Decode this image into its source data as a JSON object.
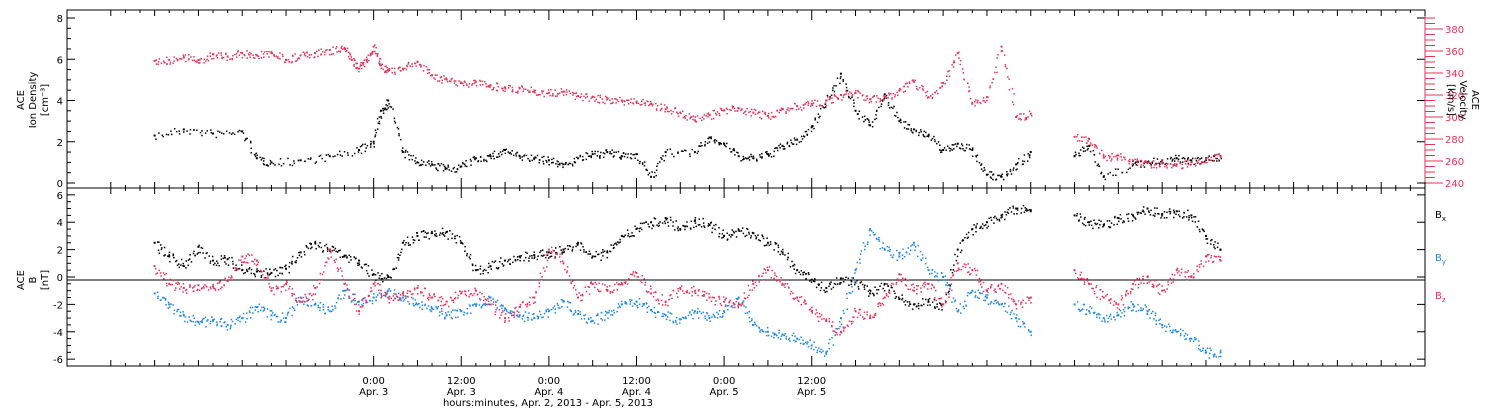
{
  "chart_data": [
    {
      "type": "scatter",
      "panel": "ion density and velocity",
      "ylabel_left": [
        "ACE",
        "Ion Density",
        "[cm⁻³]"
      ],
      "ylabel_right": [
        "ACE",
        "Velocity",
        "[km/s]"
      ],
      "ylim_left": [
        0,
        8
      ],
      "yticks_left": [
        "0",
        "2",
        "4",
        "6",
        "8"
      ],
      "ylim_right": [
        240,
        390
      ],
      "yticks_right": [
        "240",
        "260",
        "280",
        "300",
        "320",
        "340",
        "360",
        "380"
      ],
      "series": [
        {
          "axis": "left",
          "color": "#000000",
          "x": [
            -30,
            -26,
            -22,
            -18,
            -16,
            -14,
            -10,
            -6,
            -2,
            0,
            1,
            2,
            4,
            6,
            8,
            10,
            12,
            14,
            16,
            18,
            20,
            22,
            24,
            26,
            28,
            30,
            32,
            34,
            36,
            38,
            40,
            44,
            46,
            48,
            50,
            52,
            54,
            56,
            58,
            60,
            62,
            64,
            66,
            68,
            70,
            72,
            74,
            76,
            78,
            80,
            82,
            84,
            86,
            88,
            90,
            96,
            98,
            100,
            104,
            106,
            108,
            110,
            112,
            114,
            116
          ],
          "y": [
            2.3,
            2.6,
            2.4,
            2.5,
            1.2,
            1.0,
            1.1,
            1.3,
            1.6,
            2.0,
            3.5,
            4.0,
            1.5,
            1.0,
            0.9,
            0.7,
            0.8,
            1.2,
            1.3,
            1.6,
            1.3,
            1.2,
            1.1,
            0.9,
            1.2,
            1.4,
            1.5,
            1.3,
            1.4,
            0.3,
            1.5,
            1.5,
            2.2,
            1.9,
            1.3,
            1.2,
            1.4,
            1.8,
            2.1,
            2.7,
            4.0,
            5.3,
            3.5,
            2.8,
            4.3,
            3.0,
            2.6,
            2.3,
            1.6,
            1.9,
            1.6,
            0.4,
            0.3,
            0.9,
            1.5,
            1.3,
            1.8,
            0.3,
            0.9,
            1.0,
            1.1,
            1.2,
            1.1,
            1.2,
            1.3
          ]
        },
        {
          "axis": "right",
          "color": "#e8325a",
          "x": [
            -30,
            -28,
            -26,
            -24,
            -22,
            -20,
            -18,
            -16,
            -14,
            -12,
            -10,
            -8,
            -6,
            -4,
            -3,
            -2,
            -1,
            0,
            1,
            2,
            4,
            6,
            8,
            10,
            12,
            14,
            16,
            18,
            20,
            22,
            24,
            26,
            28,
            30,
            32,
            34,
            36,
            38,
            40,
            42,
            44,
            46,
            48,
            50,
            52,
            54,
            56,
            58,
            60,
            62,
            64,
            66,
            68,
            70,
            72,
            74,
            76,
            78,
            80,
            82,
            84,
            86,
            88,
            90,
            96,
            98,
            100,
            102,
            104,
            106,
            108,
            110,
            112,
            114,
            116
          ],
          "y": [
            351,
            352,
            354,
            352,
            357,
            355,
            358,
            356,
            359,
            352,
            356,
            358,
            361,
            362,
            352,
            344,
            352,
            364,
            347,
            342,
            344,
            350,
            338,
            334,
            331,
            332,
            329,
            327,
            326,
            324,
            322,
            323,
            319,
            318,
            316,
            315,
            314,
            312,
            307,
            304,
            297,
            302,
            306,
            308,
            304,
            301,
            307,
            310,
            312,
            315,
            320,
            322,
            316,
            318,
            324,
            332,
            318,
            331,
            358,
            312,
            318,
            364,
            300,
            303,
            282,
            280,
            263,
            265,
            260,
            258,
            258,
            257,
            259,
            262,
            264
          ]
        }
      ]
    },
    {
      "type": "scatter",
      "panel": "magnetic field",
      "ylabel": [
        "ACE",
        "B",
        "[nT]"
      ],
      "ylim": [
        -6.5,
        6.5
      ],
      "yticks": [
        "-6",
        "-4",
        "-2",
        "0",
        "2",
        "4",
        "6"
      ],
      "legend": [
        "Bx",
        "By",
        "Bz"
      ],
      "series": [
        {
          "name": "Bx",
          "color": "#000000",
          "x": [
            -30,
            -28,
            -26,
            -24,
            -22,
            -20,
            -18,
            -16,
            -14,
            -12,
            -10,
            -8,
            -6,
            -4,
            -2,
            0,
            2,
            4,
            6,
            8,
            10,
            12,
            14,
            16,
            18,
            20,
            22,
            24,
            26,
            28,
            30,
            32,
            34,
            36,
            38,
            40,
            42,
            44,
            46,
            48,
            50,
            52,
            54,
            56,
            58,
            60,
            62,
            64,
            66,
            68,
            70,
            72,
            74,
            76,
            78,
            80,
            82,
            84,
            86,
            88,
            90,
            96,
            98,
            100,
            102,
            104,
            106,
            108,
            110,
            112,
            114,
            116
          ],
          "y": [
            2.5,
            1.5,
            0.8,
            2.2,
            1.2,
            1.3,
            0.5,
            0.4,
            0.3,
            0.6,
            1.8,
            2.5,
            2.0,
            1.5,
            1.2,
            0.2,
            0.0,
            2.5,
            3.0,
            3.2,
            3.3,
            2.5,
            0.5,
            0.8,
            1.2,
            1.5,
            1.6,
            1.8,
            2.0,
            2.5,
            1.5,
            1.8,
            3.0,
            3.5,
            4.0,
            4.3,
            3.5,
            4.1,
            3.8,
            3.0,
            3.4,
            3.2,
            2.5,
            1.8,
            0.5,
            -0.2,
            -0.8,
            -0.1,
            -0.4,
            -1.2,
            -0.5,
            -1.6,
            -2.0,
            -1.8,
            -2.0,
            2.0,
            3.5,
            4.0,
            4.5,
            5.0,
            4.8,
            4.5,
            4.0,
            3.8,
            4.3,
            4.5,
            5.0,
            4.6,
            4.8,
            4.5,
            3.0,
            2.0
          ]
        },
        {
          "name": "By",
          "color": "#1e88e5",
          "x": [
            -30,
            -28,
            -26,
            -24,
            -22,
            -20,
            -18,
            -16,
            -14,
            -12,
            -10,
            -8,
            -6,
            -4,
            -2,
            0,
            2,
            4,
            6,
            8,
            10,
            12,
            14,
            16,
            18,
            20,
            22,
            24,
            26,
            28,
            30,
            32,
            34,
            36,
            38,
            40,
            42,
            44,
            46,
            48,
            50,
            52,
            54,
            56,
            58,
            60,
            62,
            64,
            66,
            68,
            70,
            72,
            74,
            76,
            78,
            80,
            82,
            84,
            86,
            88,
            90,
            96,
            98,
            100,
            102,
            104,
            106,
            108,
            110,
            112,
            114,
            116
          ],
          "y": [
            -1.2,
            -2.0,
            -2.8,
            -3.3,
            -3.2,
            -3.5,
            -3.0,
            -2.2,
            -2.8,
            -3.0,
            -1.5,
            -2.0,
            -2.5,
            -1.0,
            -1.8,
            -1.5,
            -1.0,
            -1.5,
            -2.0,
            -2.3,
            -2.8,
            -2.5,
            -2.0,
            -1.5,
            -2.3,
            -2.8,
            -3.0,
            -2.5,
            -1.8,
            -2.7,
            -3.2,
            -2.6,
            -2.0,
            -1.8,
            -2.4,
            -2.8,
            -3.1,
            -2.5,
            -3.0,
            -2.5,
            -1.5,
            -3.5,
            -4.0,
            -4.2,
            -4.5,
            -5.0,
            -5.5,
            -3.0,
            0.5,
            3.5,
            2.0,
            1.5,
            2.5,
            0.5,
            0.0,
            -2.5,
            -1.0,
            -1.5,
            -2.0,
            -3.0,
            -4.0,
            -2.0,
            -2.5,
            -3.0,
            -2.8,
            -2.0,
            -2.5,
            -3.5,
            -4.0,
            -4.5,
            -5.5,
            -5.5
          ]
        },
        {
          "name": "Bz",
          "color": "#e8325a",
          "x": [
            -30,
            -28,
            -26,
            -24,
            -22,
            -20,
            -18,
            -16,
            -14,
            -12,
            -10,
            -8,
            -6,
            -4,
            -2,
            0,
            2,
            4,
            6,
            8,
            10,
            12,
            14,
            16,
            18,
            20,
            22,
            24,
            26,
            28,
            30,
            32,
            34,
            36,
            38,
            40,
            42,
            44,
            46,
            48,
            50,
            52,
            54,
            56,
            58,
            60,
            62,
            64,
            66,
            68,
            70,
            72,
            74,
            76,
            78,
            80,
            82,
            84,
            86,
            88,
            90,
            96,
            98,
            100,
            102,
            104,
            106,
            108,
            110,
            112,
            114,
            116
          ],
          "y": [
            0.8,
            -0.5,
            -0.8,
            -0.6,
            -0.7,
            -0.3,
            1.5,
            1.2,
            -1.0,
            -0.5,
            -1.8,
            -0.8,
            2.0,
            -0.5,
            -2.5,
            -0.5,
            -1.5,
            -1.2,
            -0.8,
            -1.5,
            -1.8,
            -1.2,
            -1.0,
            -2.0,
            -3.0,
            -2.2,
            -1.5,
            2.0,
            1.0,
            -1.5,
            -0.5,
            -1.0,
            -0.5,
            0.3,
            -1.2,
            -1.8,
            -0.8,
            -1.0,
            -1.5,
            -1.8,
            -2.0,
            -0.5,
            0.5,
            -0.5,
            -1.5,
            -2.5,
            -3.2,
            -4.0,
            -2.5,
            -3.0,
            -1.5,
            0.2,
            -1.0,
            -0.5,
            -2.0,
            1.0,
            0.5,
            -1.0,
            -0.5,
            -2.0,
            -1.5,
            0.5,
            -0.5,
            -1.5,
            -2.0,
            -0.5,
            0.0,
            -1.0,
            0.5,
            0.0,
            1.5,
            1.2
          ]
        }
      ]
    }
  ],
  "x_axis": {
    "range_hours": [
      -42,
      144
    ],
    "ticks": [
      {
        "value": 0,
        "time": "0:00",
        "date": "Apr. 3"
      },
      {
        "value": 12,
        "time": "12:00",
        "date": "Apr. 3"
      },
      {
        "value": 24,
        "time": "0:00",
        "date": "Apr. 4"
      },
      {
        "value": 36,
        "time": "12:00",
        "date": "Apr. 4"
      },
      {
        "value": 48,
        "time": "0:00",
        "date": "Apr. 5"
      },
      {
        "value": 60,
        "time": "12:00",
        "date": "Apr. 5"
      }
    ],
    "title": "hours:minutes, Apr.  2, 2013 - Apr.  5, 2013"
  },
  "legend_labels": {
    "bx": "B",
    "bx_sub": "x",
    "by": "B",
    "by_sub": "y",
    "bz": "B",
    "bz_sub": "z"
  }
}
